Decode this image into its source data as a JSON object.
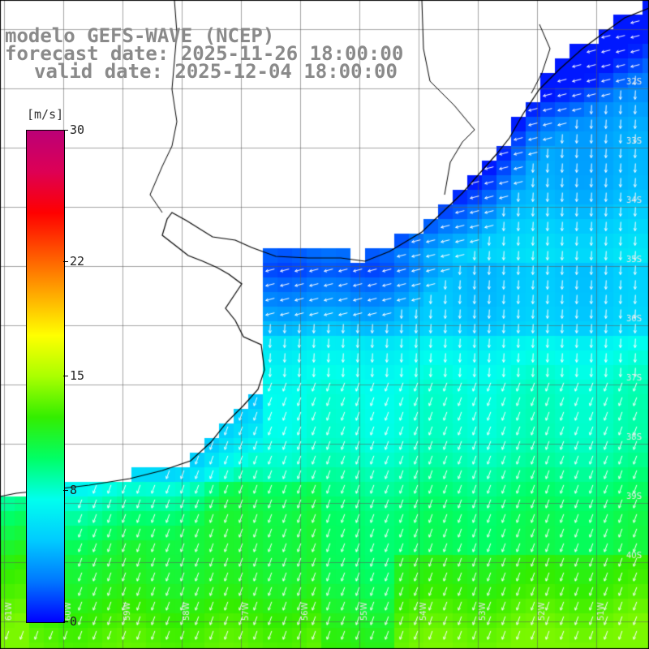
{
  "title": {
    "line1": "modelo GEFS-WAVE (NCEP)",
    "line2": "forecast date: 2025-11-26 18:00:00",
    "line3": "valid date: 2025-12-04 18:00:00"
  },
  "colorbar": {
    "unit": "[m/s]",
    "ticks": [
      "30",
      "22",
      "15",
      "8",
      "0"
    ],
    "tick_values": [
      30,
      22,
      15,
      8,
      0
    ],
    "colors": [
      "#0000ff",
      "#0077ff",
      "#00ccff",
      "#00ffee",
      "#00ff66",
      "#33ee00",
      "#aaff00",
      "#ffff00",
      "#ffaa00",
      "#ff5500",
      "#ff0000",
      "#dd0055",
      "#bb0077"
    ]
  },
  "grid": {
    "longitude_labels": [
      "61W",
      "60W",
      "59W",
      "58W",
      "57W",
      "56W",
      "55W",
      "54W",
      "53W",
      "52W",
      "51W"
    ],
    "latitude_labels": [
      "32S",
      "33S",
      "34S",
      "35S",
      "36S",
      "37S",
      "38S",
      "39S",
      "40S"
    ]
  },
  "field": {
    "variable": "wind speed",
    "units": "m/s",
    "note_regions": [
      {
        "region": "north-central coastal band",
        "speed_range_ms": [
          2,
          5
        ],
        "direction": "from east (westward arrows)"
      },
      {
        "region": "central ocean",
        "speed_range_ms": [
          5,
          8
        ],
        "direction": "southward"
      },
      {
        "region": "southern ocean",
        "speed_range_ms": [
          8,
          13
        ],
        "direction": "south-southwest"
      }
    ]
  }
}
